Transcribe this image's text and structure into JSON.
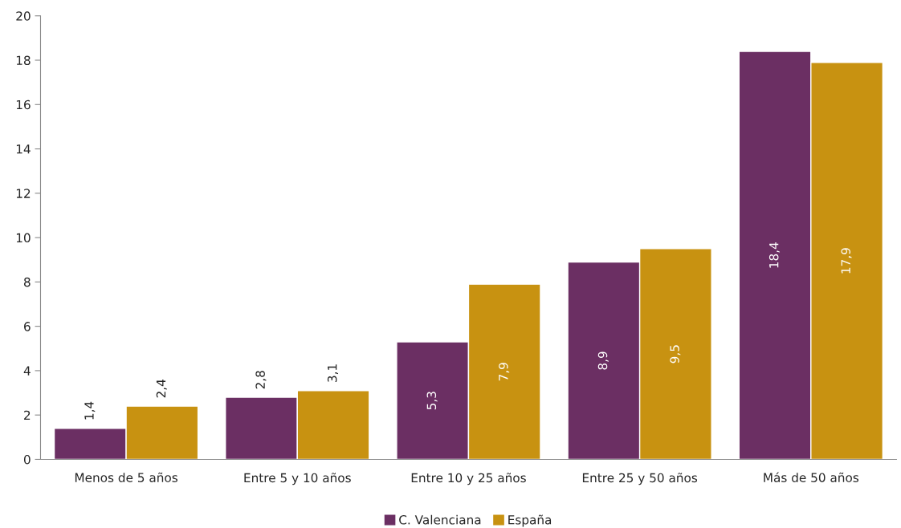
{
  "chart_data": {
    "type": "bar",
    "categories": [
      "Menos de 5 años",
      "Entre 5 y 10 años",
      "Entre 10 y 25 años",
      "Entre 25 y 50 años",
      "Más de 50 años"
    ],
    "series": [
      {
        "name": "C. Valenciana",
        "color": "#6b2f63",
        "values": [
          1.4,
          2.8,
          5.3,
          8.9,
          18.4
        ],
        "value_labels": [
          "1,4",
          "2,8",
          "5,3",
          "8,9",
          "18,4"
        ]
      },
      {
        "name": "España",
        "color": "#c89211",
        "values": [
          2.4,
          3.1,
          7.9,
          9.5,
          17.9
        ],
        "value_labels": [
          "2,4",
          "3,1",
          "7,9",
          "9,5",
          "17,9"
        ]
      }
    ],
    "ylim": [
      0,
      20
    ],
    "yticks": [
      0,
      2,
      4,
      6,
      8,
      10,
      12,
      14,
      16,
      18,
      20
    ],
    "grid": false,
    "legend": "bottom"
  }
}
